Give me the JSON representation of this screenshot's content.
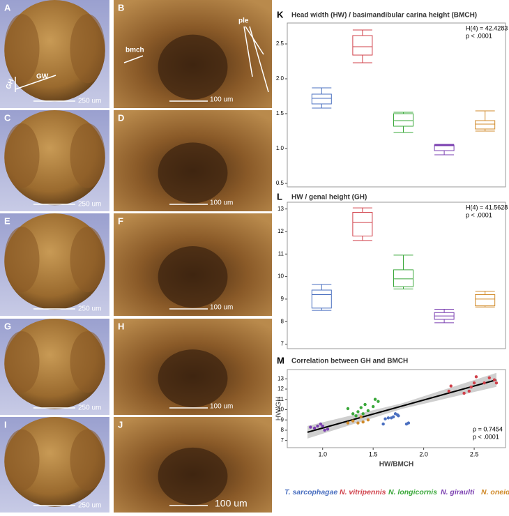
{
  "panels": [
    {
      "letter": "A",
      "scale": "250 um"
    },
    {
      "letter": "B",
      "scale": "100 um"
    },
    {
      "letter": "C",
      "scale": "250 um"
    },
    {
      "letter": "D",
      "scale": "100 um"
    },
    {
      "letter": "E",
      "scale": "250 um"
    },
    {
      "letter": "F",
      "scale": "100 um"
    },
    {
      "letter": "G",
      "scale": "250 um"
    },
    {
      "letter": "H",
      "scale": "100 um"
    },
    {
      "letter": "I",
      "scale": "250 um"
    },
    {
      "letter": "J",
      "scale": "100 um"
    }
  ],
  "annotations": {
    "gw": "GW",
    "gh": "GH",
    "bmch": "bmch",
    "ple": "ple"
  },
  "chart_data": [
    {
      "type": "box",
      "panel": "K",
      "title": "Head width (HW) / basimandibular carina height (BMCH)",
      "annotation": [
        "H(4) = 42.4283",
        "p < .0001"
      ],
      "categories": [
        null,
        null,
        null,
        null,
        null
      ],
      "boxes": [
        {
          "color": "#4a6fc0",
          "min": 1.58,
          "q1": 1.64,
          "median": 1.72,
          "q3": 1.78,
          "max": 1.87
        },
        {
          "color": "#d0404a",
          "min": 2.23,
          "q1": 2.34,
          "median": 2.46,
          "q3": 2.62,
          "max": 2.7
        },
        {
          "color": "#3aa83a",
          "min": 1.23,
          "q1": 1.32,
          "median": 1.4,
          "q3": 1.5,
          "max": 1.52
        },
        {
          "color": "#7a3fb0",
          "min": 0.91,
          "q1": 0.97,
          "median": 1.04,
          "q3": 1.05,
          "max": 1.06
        },
        {
          "color": "#d08a2a",
          "min": 1.25,
          "q1": 1.28,
          "median": 1.35,
          "q3": 1.4,
          "max": 1.54
        }
      ],
      "ylim": [
        0.45,
        2.8
      ],
      "yticks": [
        0.5,
        {
          "value": 1,
          "label": "1.0"
        },
        1.5,
        {
          "value": 2,
          "label": "2.0"
        },
        2.5
      ]
    },
    {
      "type": "box",
      "panel": "L",
      "title": "HW / genal height (GH)",
      "annotation": [
        "H(4) = 41.5628",
        "p < .0001"
      ],
      "categories": [
        null,
        null,
        null,
        null,
        null
      ],
      "boxes": [
        {
          "color": "#4a6fc0",
          "min": 8.5,
          "q1": 8.6,
          "median": 9.2,
          "q3": 9.4,
          "max": 9.65
        },
        {
          "color": "#d0404a",
          "min": 11.6,
          "q1": 11.8,
          "median": 12.4,
          "q3": 12.85,
          "max": 13.05
        },
        {
          "color": "#3aa83a",
          "min": 9.45,
          "q1": 9.55,
          "median": 9.9,
          "q3": 10.3,
          "max": 10.95
        },
        {
          "color": "#7a3fb0",
          "min": 7.95,
          "q1": 8.1,
          "median": 8.25,
          "q3": 8.4,
          "max": 8.55
        },
        {
          "color": "#d08a2a",
          "min": 8.65,
          "q1": 8.7,
          "median": 9,
          "q3": 9.2,
          "max": 9.35
        }
      ],
      "ylim": [
        6.8,
        13.3
      ],
      "yticks": [
        7,
        8,
        9,
        10,
        11,
        12,
        13
      ]
    },
    {
      "type": "scatter",
      "panel": "M",
      "title": "Correlation between GH and BMCH",
      "xlabel": "HW/BMCH",
      "ylabel": "HW/GH",
      "annotation": [
        "ρ =  0.7454",
        "p < .0001"
      ],
      "series": [
        {
          "name": "T. sarcophagae",
          "color": "#4a6fc0",
          "x": [
            1.6,
            1.62,
            1.65,
            1.7,
            1.72,
            1.75,
            1.83,
            1.85,
            1.68,
            1.74
          ],
          "y": [
            8.6,
            9.1,
            9.2,
            9.3,
            9.6,
            9.4,
            8.6,
            8.7,
            9.2,
            9.5
          ]
        },
        {
          "name": "N. vitripennis",
          "color": "#d0404a",
          "x": [
            2.25,
            2.27,
            2.4,
            2.45,
            2.47,
            2.5,
            2.52,
            2.6,
            2.65,
            2.72,
            2.7
          ],
          "y": [
            11.8,
            12.3,
            11.6,
            11.8,
            12.2,
            12.6,
            13.2,
            12.6,
            13.1,
            12.6,
            12.9
          ]
        },
        {
          "name": "N. longicornis",
          "color": "#3aa83a",
          "x": [
            1.25,
            1.3,
            1.35,
            1.38,
            1.4,
            1.42,
            1.45,
            1.5,
            1.52,
            1.55,
            1.33
          ],
          "y": [
            10.1,
            9.6,
            9.8,
            10.2,
            9.6,
            10.5,
            9.9,
            10.3,
            11,
            10.8,
            9.4
          ]
        },
        {
          "name": "N. giraulti",
          "color": "#7a3fb0",
          "x": [
            0.88,
            0.92,
            0.95,
            0.98,
            1,
            1.02,
            1.05
          ],
          "y": [
            8.3,
            8.2,
            8.4,
            8.6,
            8.4,
            8,
            8.1
          ]
        },
        {
          "name": "N. oneida",
          "color": "#d08a2a",
          "x": [
            1.25,
            1.3,
            1.35,
            1.38,
            1.4,
            1.45
          ],
          "y": [
            8.7,
            8.9,
            8.7,
            9.3,
            8.8,
            9
          ]
        }
      ],
      "trend_line": {
        "x": [
          0.85,
          2.72
        ],
        "y": [
          7.8,
          12.9
        ]
      },
      "xlim": [
        0.65,
        2.81
      ],
      "ylim": [
        6.3,
        13.9
      ],
      "xticks": [
        {
          "value": 1,
          "label": "1.0"
        },
        1.5,
        {
          "value": 2,
          "label": "2.0"
        },
        2.5
      ],
      "yticks": [
        7,
        8,
        9,
        10,
        11,
        12,
        13
      ]
    }
  ]
}
